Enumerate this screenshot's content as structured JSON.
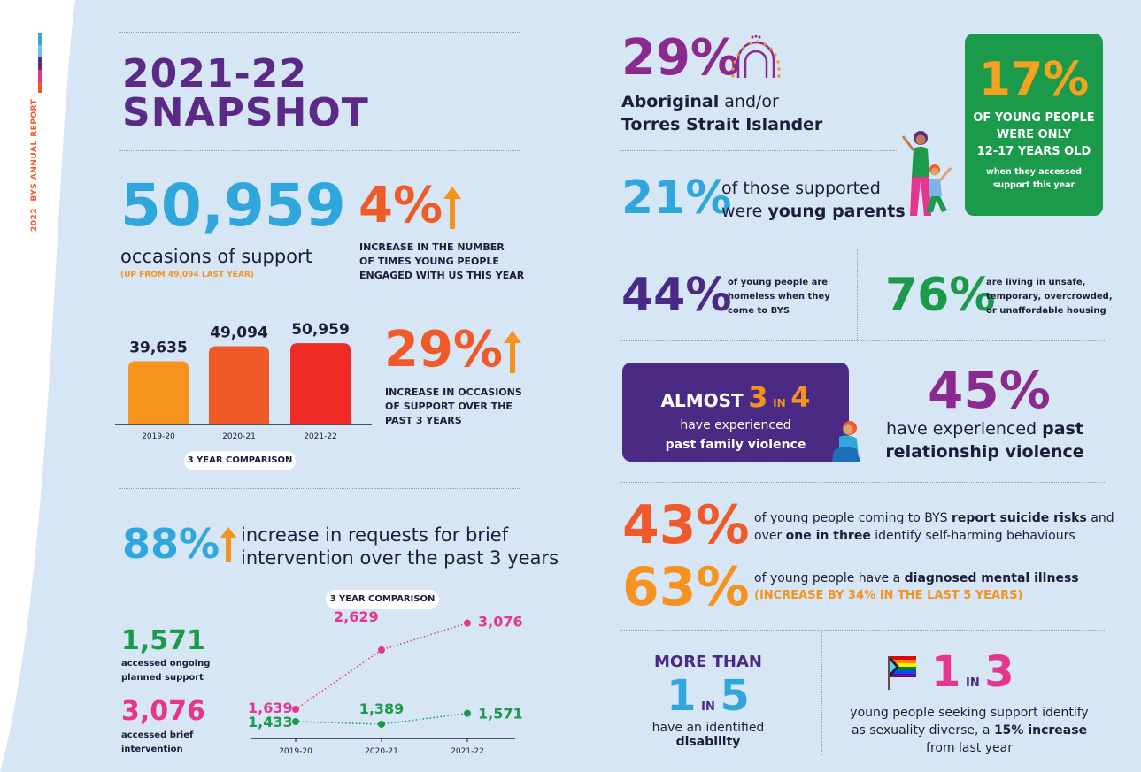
{
  "side": {
    "year": "2022",
    "report": "BYS ANNUAL REPORT"
  },
  "colors": {
    "purple": "#5b2a86",
    "blue": "#2fa7dd",
    "orange": "#f47b20",
    "red": "#ee2a24",
    "green": "#1a9a4a",
    "pink": "#e6358f",
    "dark": "#1d1d3b"
  },
  "title": {
    "line1": "2021-22",
    "line2": "SNAPSHOT"
  },
  "occasions": {
    "value": "50,959",
    "label": "occasions of support",
    "sub": "(UP FROM 49,094 LAST YEAR)"
  },
  "increase4": {
    "value": "4%",
    "line1": "INCREASE IN THE NUMBER",
    "line2": "OF TIMES YOUNG PEOPLE",
    "line3": "ENGAGED WITH US THIS YEAR"
  },
  "increase29": {
    "value": "29%",
    "line1": "INCREASE IN OCCASIONS",
    "line2": "OF SUPPORT OVER THE",
    "line3": "PAST 3 YEARS"
  },
  "chart_data": [
    {
      "type": "bar",
      "title": "3 YEAR COMPARISON",
      "categories": [
        "2019-20",
        "2020-21",
        "2021-22"
      ],
      "values": [
        39635,
        49094,
        50959
      ],
      "value_labels": [
        "39,635",
        "49,094",
        "50,959"
      ],
      "colors": [
        "#f6921e",
        "#f05a28",
        "#ee2a24"
      ]
    },
    {
      "type": "line",
      "title": "3 YEAR COMPARISON",
      "categories": [
        "2019-20",
        "2020-21",
        "2021-22"
      ],
      "series": [
        {
          "name": "accessed brief intervention",
          "values": [
            1639,
            2629,
            3076
          ],
          "labels": [
            "1,639",
            "2,629",
            "3,076"
          ],
          "color": "#e6358f"
        },
        {
          "name": "accessed ongoing planned support",
          "values": [
            1433,
            1389,
            1571
          ],
          "labels": [
            "1,433",
            "1,389",
            "1,571"
          ],
          "color": "#1a9a4a"
        }
      ]
    }
  ],
  "brief": {
    "value": "88%",
    "line1": "increase in requests for brief",
    "line2": "intervention over the past 3 years"
  },
  "ongoing": {
    "value": "1,571",
    "line1": "accessed ongoing",
    "line2": "planned support"
  },
  "briefint": {
    "value": "3,076",
    "line1": "accessed brief",
    "line2": "intervention"
  },
  "aboriginal": {
    "value": "29%",
    "line1a": "Aboriginal",
    "line1b": " and/or",
    "line2": "Torres Strait Islander"
  },
  "young_parents": {
    "value": "21%",
    "line1": "of those supported",
    "line2a": "were ",
    "line2b": "young parents"
  },
  "green_box": {
    "value": "17%",
    "line1": "OF YOUNG PEOPLE",
    "line2": "WERE ONLY",
    "line3": "12-17 YEARS OLD",
    "line4": "when they accessed",
    "line5": "support this year"
  },
  "homeless": {
    "value": "44%",
    "line1": "of young people are",
    "line2": "homeless when they",
    "line3": "come to BYS"
  },
  "housing": {
    "value": "76%",
    "line1": "are living in unsafe,",
    "line2": "temporary, overcrowded,",
    "line3": "or unaffordable housing"
  },
  "family_violence": {
    "almost": "ALMOST",
    "n": "3",
    "in": "IN",
    "d": "4",
    "line1": "have experienced",
    "line2": "past family violence"
  },
  "relationship": {
    "value": "45%",
    "line1a": "have experienced ",
    "line1b": "past",
    "line2": "relationship violence"
  },
  "suicide": {
    "value": "43%",
    "l1a": "of young people coming to BYS ",
    "l1b": "report suicide risks",
    "l1c": " and",
    "l2a": "over ",
    "l2b": "one in three",
    "l2c": " identify self-harming behaviours"
  },
  "mental": {
    "value": "63%",
    "l1a": "of young people have a ",
    "l1b": "diagnosed mental illness",
    "l2": "(INCREASE BY 34% IN THE LAST 5 YEARS)"
  },
  "disability": {
    "more": "MORE THAN",
    "n": "1",
    "in": "IN",
    "d": "5",
    "la": "have an identified ",
    "lb": "disability"
  },
  "diverse": {
    "n": "1",
    "in": "IN",
    "d": "3",
    "l1": "young people seeking support identify",
    "l2a": "as sexuality diverse, a ",
    "l2b": "15% increase",
    "l3": "from last year"
  }
}
